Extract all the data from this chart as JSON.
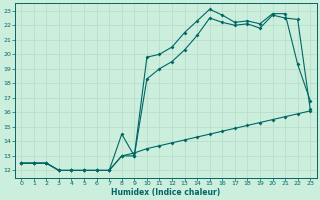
{
  "xlabel": "Humidex (Indice chaleur)",
  "bg_color": "#cceedd",
  "line_color": "#006666",
  "grid_color": "#bbddcc",
  "xlim": [
    -0.5,
    23.5
  ],
  "ylim": [
    11.5,
    23.5
  ],
  "xticks": [
    0,
    1,
    2,
    3,
    4,
    5,
    6,
    7,
    8,
    9,
    10,
    11,
    12,
    13,
    14,
    15,
    16,
    17,
    18,
    19,
    20,
    21,
    22,
    23
  ],
  "yticks": [
    12,
    13,
    14,
    15,
    16,
    17,
    18,
    19,
    20,
    21,
    22,
    23
  ],
  "line1_x": [
    0,
    1,
    2,
    3,
    4,
    5,
    6,
    7,
    8,
    9,
    10,
    11,
    12,
    13,
    14,
    15,
    16,
    17,
    18,
    19,
    20,
    21,
    22,
    23
  ],
  "line1_y": [
    12.5,
    12.5,
    12.5,
    12.0,
    12.0,
    12.0,
    12.0,
    12.0,
    14.5,
    13.0,
    19.8,
    20.0,
    20.5,
    21.5,
    22.3,
    23.1,
    22.7,
    22.2,
    22.3,
    22.1,
    22.8,
    22.8,
    19.3,
    16.8
  ],
  "line2_x": [
    0,
    1,
    2,
    3,
    4,
    5,
    6,
    7,
    8,
    9,
    10,
    11,
    12,
    13,
    14,
    15,
    16,
    17,
    18,
    19,
    20,
    21,
    22,
    23
  ],
  "line2_y": [
    12.5,
    12.5,
    12.5,
    12.0,
    12.0,
    12.0,
    12.0,
    12.0,
    13.0,
    13.0,
    18.3,
    19.0,
    19.5,
    20.3,
    21.3,
    22.5,
    22.2,
    22.0,
    22.1,
    21.8,
    22.7,
    22.5,
    22.4,
    16.2
  ],
  "line3_x": [
    0,
    1,
    2,
    3,
    4,
    5,
    6,
    7,
    8,
    9,
    10,
    11,
    12,
    13,
    14,
    15,
    16,
    17,
    18,
    19,
    20,
    21,
    22,
    23
  ],
  "line3_y": [
    12.5,
    12.5,
    12.5,
    12.0,
    12.0,
    12.0,
    12.0,
    12.0,
    13.0,
    13.2,
    13.5,
    13.7,
    13.9,
    14.1,
    14.3,
    14.5,
    14.7,
    14.9,
    15.1,
    15.3,
    15.5,
    15.7,
    15.9,
    16.1
  ]
}
